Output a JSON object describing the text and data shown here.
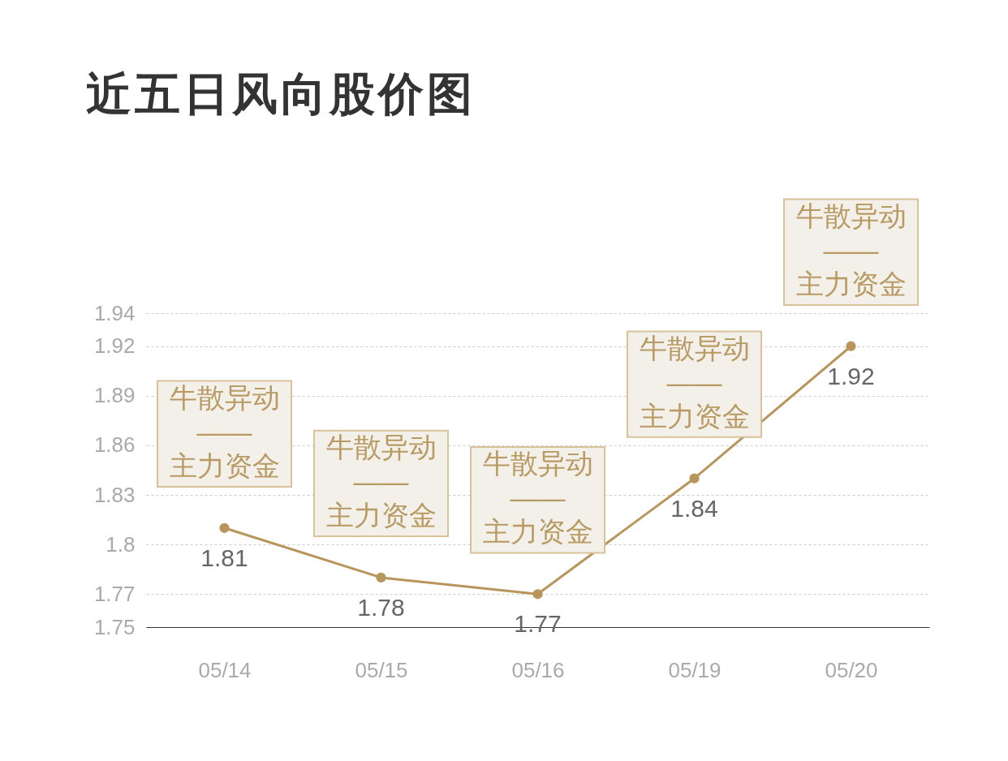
{
  "chart_data": {
    "type": "line",
    "title": "近五日风向股价图",
    "categories": [
      "05/14",
      "05/15",
      "05/16",
      "05/19",
      "05/20"
    ],
    "series": [
      {
        "color": "#b8955a",
        "values": [
          1.81,
          1.78,
          1.77,
          1.84,
          1.92
        ]
      }
    ],
    "ylim": [
      1.75,
      1.94
    ],
    "yticks": [
      1.75,
      1.77,
      1.8,
      1.83,
      1.86,
      1.89,
      1.92,
      1.94
    ],
    "grid": "y",
    "marker": "circle",
    "data_labels": true,
    "annotations": [
      {
        "text": "牛散异动\n——\n主力资金",
        "x": "05/14",
        "y": 1.81
      },
      {
        "text": "牛散异动\n——\n主力资金",
        "x": "05/15",
        "y": 1.78
      },
      {
        "text": "牛散异动\n——\n主力资金",
        "x": "05/16",
        "y": 1.77
      },
      {
        "text": "牛散异动\n——\n主力资金",
        "x": "05/19",
        "y": 1.84
      },
      {
        "text": "牛散异动\n——\n主力资金",
        "x": "05/20",
        "y": 1.92
      }
    ]
  }
}
